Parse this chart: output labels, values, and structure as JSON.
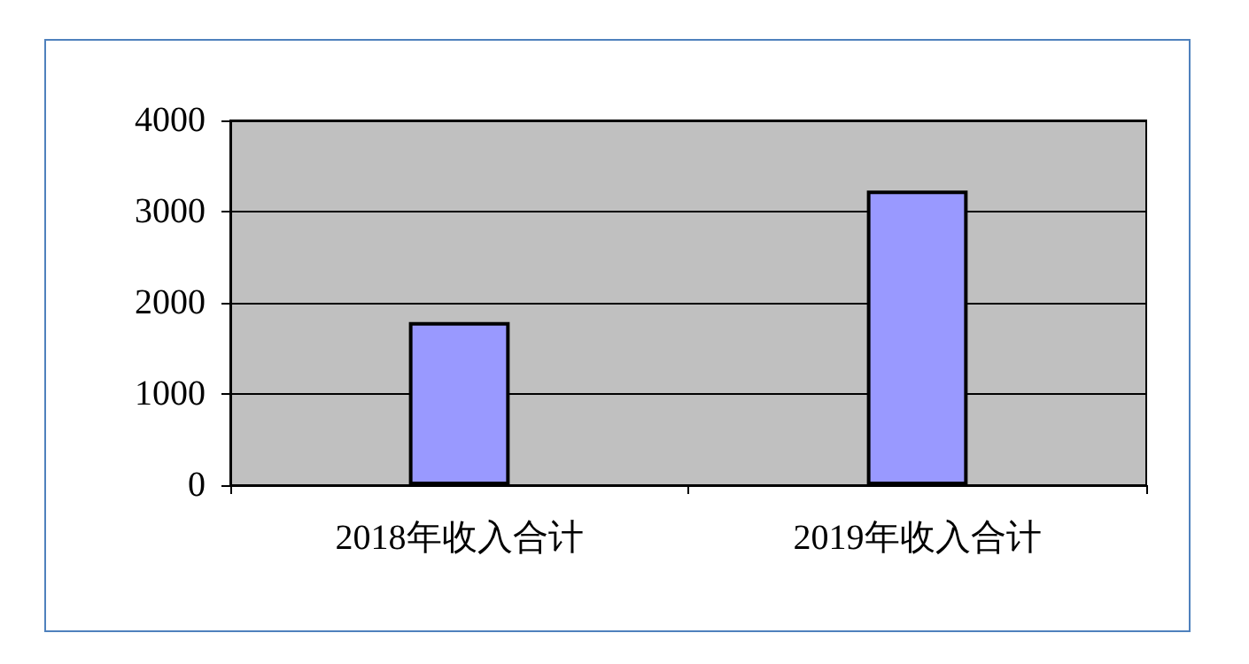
{
  "chart_data": {
    "type": "bar",
    "categories": [
      "2018年收入合计",
      "2019年收入合计"
    ],
    "values": [
      1790,
      3230
    ],
    "color": "#9999ff",
    "ylim": [
      0,
      4000
    ],
    "yticks": [
      0,
      1000,
      2000,
      3000,
      4000
    ],
    "grid": "y"
  }
}
